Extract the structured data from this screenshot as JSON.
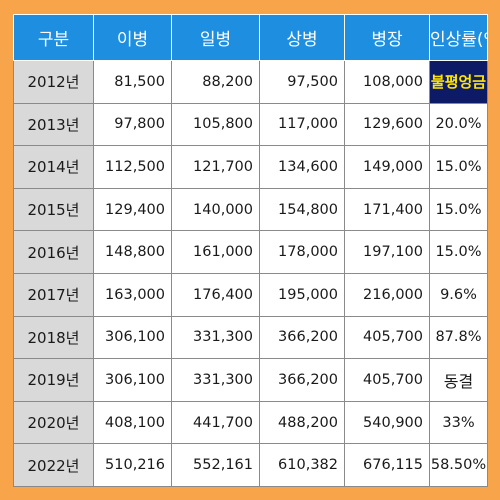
{
  "table": {
    "headers": [
      "구분",
      "이병",
      "일병",
      "상병",
      "병장",
      "인상률(%)"
    ],
    "rows": [
      {
        "year": "2012년",
        "private": "81,500",
        "pfc": "88,200",
        "corporal": "97,500",
        "sergeant": "108,000",
        "rate": "불평엉금"
      },
      {
        "year": "2013년",
        "private": "97,800",
        "pfc": "105,800",
        "corporal": "117,000",
        "sergeant": "129,600",
        "rate": "20.0%"
      },
      {
        "year": "2014년",
        "private": "112,500",
        "pfc": "121,700",
        "corporal": "134,600",
        "sergeant": "149,000",
        "rate": "15.0%"
      },
      {
        "year": "2015년",
        "private": "129,400",
        "pfc": "140,000",
        "corporal": "154,800",
        "sergeant": "171,400",
        "rate": "15.0%"
      },
      {
        "year": "2016년",
        "private": "148,800",
        "pfc": "161,000",
        "corporal": "178,000",
        "sergeant": "197,100",
        "rate": "15.0%"
      },
      {
        "year": "2017년",
        "private": "163,000",
        "pfc": "176,400",
        "corporal": "195,000",
        "sergeant": "216,000",
        "rate": "9.6%"
      },
      {
        "year": "2018년",
        "private": "306,100",
        "pfc": "331,300",
        "corporal": "366,200",
        "sergeant": "405,700",
        "rate": "87.8%"
      },
      {
        "year": "2019년",
        "private": "306,100",
        "pfc": "331,300",
        "corporal": "366,200",
        "sergeant": "405,700",
        "rate": "동결"
      },
      {
        "year": "2020년",
        "private": "408,100",
        "pfc": "441,700",
        "corporal": "488,200",
        "sergeant": "540,900",
        "rate": "33%"
      },
      {
        "year": "2022년",
        "private": "510,216",
        "pfc": "552,161",
        "corporal": "610,382",
        "sergeant": "676,115",
        "rate": "58.50%"
      }
    ]
  },
  "colors": {
    "background": "#f7a44a",
    "header": "#1e8fe0",
    "year_cell": "#d9d9d9",
    "highlight_bg": "#0d1a66",
    "highlight_text": "#ffe600"
  }
}
